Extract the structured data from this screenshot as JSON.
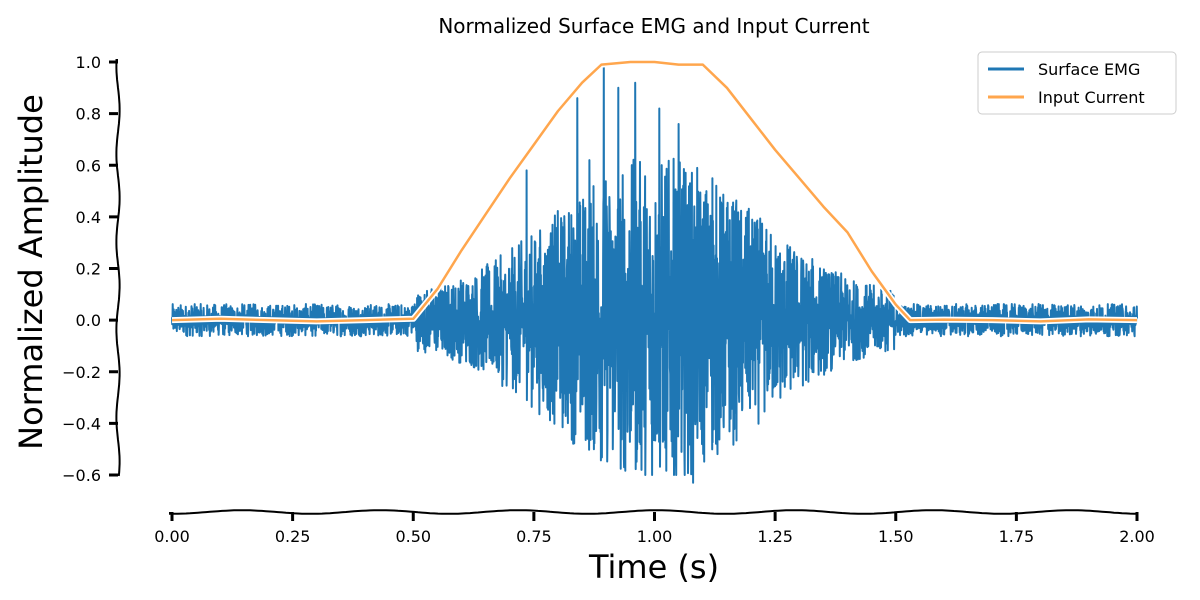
{
  "chart_data": {
    "type": "line",
    "title": "Normalized Surface EMG and Input Current",
    "xlabel": "Time (s)",
    "ylabel": "Normalized Amplitude",
    "xlim": [
      0.0,
      2.0
    ],
    "ylim": [
      -0.6,
      1.0
    ],
    "x_ticks": [
      "0.00",
      "0.25",
      "0.50",
      "0.75",
      "1.00",
      "1.25",
      "1.50",
      "1.75",
      "2.00"
    ],
    "y_ticks": [
      "−0.6",
      "−0.4",
      "−0.2",
      "0.0",
      "0.2",
      "0.4",
      "0.6",
      "0.8",
      "1.0"
    ],
    "grid": false,
    "legend_position": "top-right",
    "series": [
      {
        "name": "Surface EMG",
        "color": "#1f77b4",
        "kind": "oscillating signal",
        "baseline_amplitude": 0.09,
        "peak_positive": 0.99,
        "peak_negative": -0.63,
        "burst_start": 0.5,
        "burst_end": 1.5
      },
      {
        "name": "Input Current",
        "color": "#ffa64d",
        "x": [
          0.0,
          0.1,
          0.2,
          0.3,
          0.4,
          0.5,
          0.55,
          0.6,
          0.65,
          0.7,
          0.75,
          0.8,
          0.85,
          0.89,
          0.95,
          1.0,
          1.05,
          1.1,
          1.15,
          1.2,
          1.25,
          1.3,
          1.35,
          1.4,
          1.45,
          1.5,
          1.53,
          1.6,
          1.7,
          1.8,
          1.9,
          2.0
        ],
        "y": [
          0.0,
          0.005,
          0.0,
          -0.005,
          0.0,
          0.005,
          0.12,
          0.27,
          0.41,
          0.55,
          0.68,
          0.81,
          0.92,
          0.99,
          1.0,
          1.0,
          0.99,
          0.99,
          0.9,
          0.78,
          0.66,
          0.55,
          0.44,
          0.34,
          0.19,
          0.06,
          0.0,
          0.002,
          0.0,
          -0.005,
          0.003,
          0.0
        ]
      }
    ]
  }
}
